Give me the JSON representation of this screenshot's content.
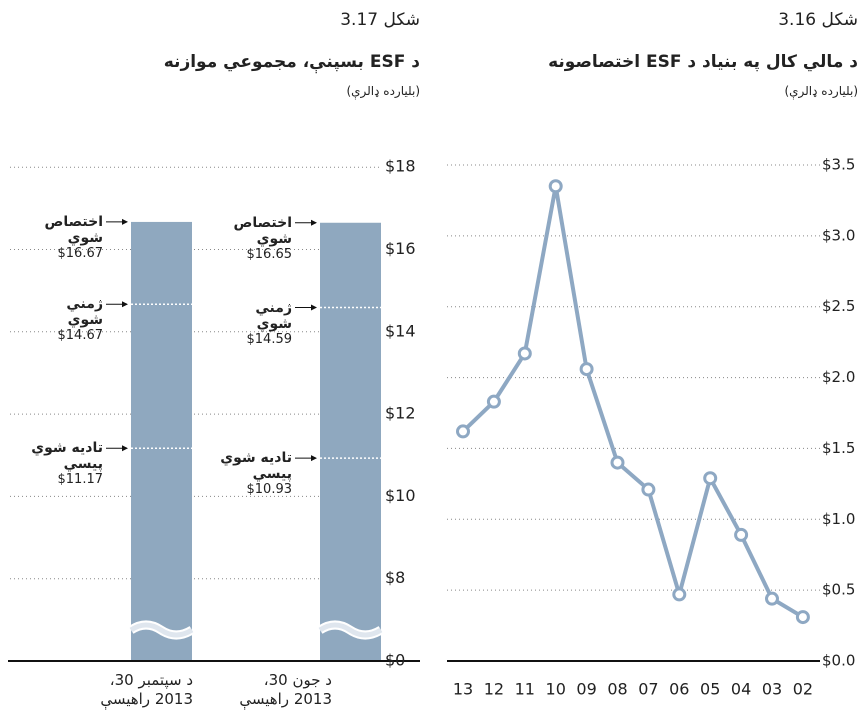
{
  "chart_data": [
    {
      "type": "line",
      "figure": "شكل 3.16",
      "title": "د مالي كال په بنياد د ESF اختصاصونه",
      "subtitle": "(بلیارده ډالرې)",
      "categories": [
        "13",
        "12",
        "11",
        "10",
        "09",
        "08",
        "07",
        "06",
        "05",
        "04",
        "03",
        "02"
      ],
      "values": [
        1.62,
        1.83,
        2.17,
        3.35,
        2.06,
        1.4,
        1.21,
        0.47,
        1.29,
        0.89,
        0.44,
        0.31
      ],
      "color": "#8ea8c3",
      "ylim": [
        0,
        3.5
      ],
      "yticks": [
        {
          "value": 0,
          "label": "$0.0"
        },
        {
          "value": 0.5,
          "label": "$0.5"
        },
        {
          "value": 1,
          "label": "$1.0"
        },
        {
          "value": 1.5,
          "label": "$1.5"
        },
        {
          "value": 2,
          "label": "$2.0"
        },
        {
          "value": 2.5,
          "label": "$2.5"
        },
        {
          "value": 3,
          "label": "$3.0"
        },
        {
          "value": 3.5,
          "label": "$3.5"
        }
      ],
      "grid": true
    },
    {
      "type": "bar",
      "figure": "شكل 3.17",
      "title": "د ESF بسپنې، مجموعي موازنه",
      "subtitle": "(بلیارده ډالرې)",
      "categories": [
        "د سپتمبر 30،\n2013 راهیسې",
        "د جون 30،\n2013 راهیسې"
      ],
      "color": "#8fa8bf",
      "series": [
        {
          "name": "اختصاص شوي",
          "values": [
            16.67,
            16.65
          ],
          "value_labels": [
            "$16.67",
            "$16.65"
          ]
        },
        {
          "name": "ژمني شوي",
          "values": [
            14.67,
            14.59
          ],
          "value_labels": [
            "$14.67",
            "$14.59"
          ]
        },
        {
          "name": "تاديه شوي پيسي",
          "values": [
            11.17,
            10.93
          ],
          "value_labels": [
            "$11.17",
            "$10.93"
          ]
        }
      ],
      "ylim": [
        0,
        18
      ],
      "yticks": [
        {
          "value": 0,
          "label": "$0"
        },
        {
          "value": 8,
          "label": "$8"
        },
        {
          "value": 10,
          "label": "$10"
        },
        {
          "value": 12,
          "label": "$12"
        },
        {
          "value": 14,
          "label": "$14"
        },
        {
          "value": 16,
          "label": "$16"
        },
        {
          "value": 18,
          "label": "$18"
        }
      ],
      "grid": true
    }
  ]
}
